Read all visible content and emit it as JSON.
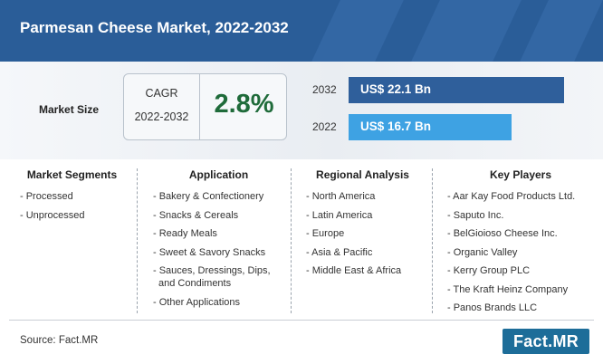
{
  "header": {
    "title": "Parmesan Cheese Market, 2022-2032"
  },
  "market_size": {
    "label": "Market Size",
    "cagr_label": "CAGR",
    "cagr_period": "2022-2032",
    "cagr_value": "2.8%"
  },
  "chart_data": {
    "type": "bar",
    "categories": [
      "2032",
      "2022"
    ],
    "values": [
      22.1,
      16.7
    ],
    "value_labels": [
      "US$ 22.1 Bn",
      "US$ 16.7 Bn"
    ],
    "colors": [
      "#2f5f9b",
      "#3ea2e3"
    ],
    "orientation": "horizontal",
    "title": "",
    "xlabel": "",
    "ylabel": ""
  },
  "columns": [
    {
      "heading": "Market Segments",
      "items": [
        "- Processed",
        "- Unprocessed"
      ]
    },
    {
      "heading": "Application",
      "items": [
        "- Bakery & Confectionery",
        "- Snacks & Cereals",
        "- Ready Meals",
        "- Sweet & Savory Snacks",
        "- Sauces, Dressings, Dips, and Condiments",
        "- Other Applications"
      ]
    },
    {
      "heading": "Regional Analysis",
      "items": [
        "- North America",
        "- Latin America",
        "- Europe",
        "- Asia & Pacific",
        "- Middle East & Africa"
      ]
    },
    {
      "heading": "Key Players",
      "items": [
        "- Aar Kay Food Products Ltd.",
        "- Saputo Inc.",
        "- BelGioioso Cheese Inc.",
        "- Organic Valley",
        "- Kerry Group PLC",
        "- The Kraft Heinz Company",
        "- Panos Brands LLC"
      ]
    }
  ],
  "footer": {
    "source": "Source: Fact.MR",
    "logo": "Fact.MR"
  }
}
